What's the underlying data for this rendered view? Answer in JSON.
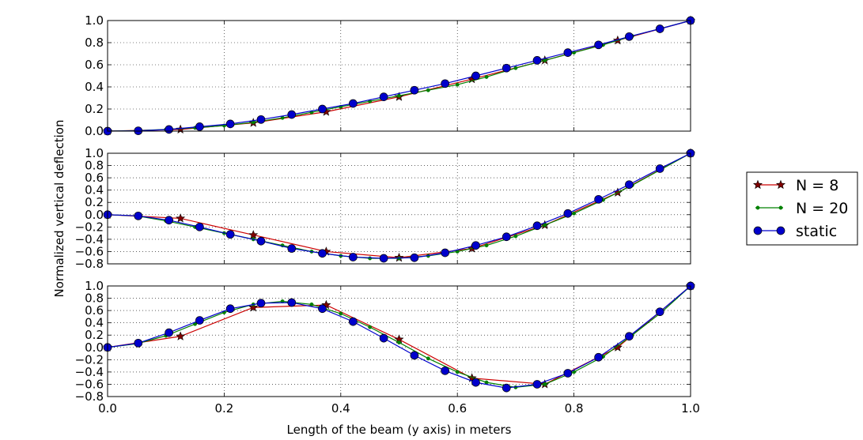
{
  "chart_data": {
    "type": "line",
    "xlabel": "Length of the beam (y axis) in meters",
    "ylabel": "Normalized vertical deflection",
    "xlim": [
      0.0,
      1.0
    ],
    "xticks": [
      "0.0",
      "0.2",
      "0.4",
      "0.6",
      "0.8",
      "1.0"
    ],
    "grid": true,
    "legend_position": "right",
    "colors": {
      "N = 8": "#cc0000",
      "N = 20": "#008000",
      "static": "#0000cc",
      "n8_marker": "#800000"
    },
    "subplots": [
      {
        "ylim": [
          0.0,
          1.0
        ],
        "yticks": [
          "0.0",
          "0.2",
          "0.4",
          "0.6",
          "0.8",
          "1.0"
        ],
        "series": [
          {
            "name": "N = 8",
            "marker": "star",
            "x": [
              0,
              0.125,
              0.25,
              0.375,
              0.5,
              0.625,
              0.75,
              0.875,
              1.0
            ],
            "y": [
              0,
              0.015,
              0.075,
              0.175,
              0.31,
              0.47,
              0.64,
              0.82,
              1.0
            ]
          },
          {
            "name": "N = 20",
            "marker": "dot",
            "x": [
              0,
              0.05,
              0.1,
              0.15,
              0.2,
              0.25,
              0.3,
              0.35,
              0.4,
              0.45,
              0.5,
              0.55,
              0.6,
              0.65,
              0.7,
              0.75,
              0.8,
              0.85,
              0.9,
              0.95,
              1.0
            ],
            "y": [
              0,
              0.005,
              0.015,
              0.03,
              0.05,
              0.08,
              0.12,
              0.17,
              0.22,
              0.27,
              0.32,
              0.37,
              0.42,
              0.49,
              0.57,
              0.64,
              0.71,
              0.78,
              0.86,
              0.93,
              1.0
            ]
          },
          {
            "name": "static",
            "marker": "circle",
            "x": [
              0,
              0.0526,
              0.1053,
              0.1579,
              0.2105,
              0.2632,
              0.3158,
              0.3684,
              0.4211,
              0.4737,
              0.5263,
              0.5789,
              0.6316,
              0.6842,
              0.7368,
              0.7895,
              0.8421,
              0.8947,
              0.9474,
              1.0
            ],
            "y": [
              0,
              0.003,
              0.015,
              0.04,
              0.065,
              0.105,
              0.15,
              0.2,
              0.25,
              0.31,
              0.37,
              0.43,
              0.5,
              0.57,
              0.64,
              0.71,
              0.78,
              0.855,
              0.925,
              1.0
            ]
          }
        ]
      },
      {
        "ylim": [
          -0.8,
          1.0
        ],
        "yticks": [
          "−0.8",
          "−0.6",
          "−0.4",
          "−0.2",
          "0.0",
          "0.2",
          "0.4",
          "0.6",
          "0.8",
          "1.0"
        ],
        "series": [
          {
            "name": "N = 8",
            "marker": "star",
            "x": [
              0,
              0.125,
              0.25,
              0.375,
              0.5,
              0.625,
              0.75,
              0.875,
              1.0
            ],
            "y": [
              0,
              -0.06,
              -0.33,
              -0.6,
              -0.7,
              -0.55,
              -0.17,
              0.36,
              1.0
            ]
          },
          {
            "name": "N = 20",
            "marker": "dot",
            "x": [
              0,
              0.05,
              0.1,
              0.15,
              0.2,
              0.25,
              0.3,
              0.35,
              0.4,
              0.45,
              0.5,
              0.55,
              0.6,
              0.65,
              0.7,
              0.75,
              0.8,
              0.85,
              0.9,
              0.95,
              1.0
            ],
            "y": [
              0,
              -0.02,
              -0.1,
              -0.2,
              -0.3,
              -0.4,
              -0.5,
              -0.6,
              -0.67,
              -0.71,
              -0.71,
              -0.67,
              -0.6,
              -0.5,
              -0.35,
              -0.17,
              0.02,
              0.24,
              0.48,
              0.74,
              1.0
            ]
          },
          {
            "name": "static",
            "marker": "circle",
            "x": [
              0,
              0.0526,
              0.1053,
              0.1579,
              0.2105,
              0.2632,
              0.3158,
              0.3684,
              0.4211,
              0.4737,
              0.5263,
              0.5789,
              0.6316,
              0.6842,
              0.7368,
              0.7895,
              0.8421,
              0.8947,
              0.9474,
              1.0
            ],
            "y": [
              0,
              -0.02,
              -0.09,
              -0.2,
              -0.32,
              -0.43,
              -0.55,
              -0.63,
              -0.69,
              -0.71,
              -0.7,
              -0.62,
              -0.5,
              -0.36,
              -0.18,
              0.02,
              0.25,
              0.49,
              0.75,
              1.0
            ]
          }
        ]
      },
      {
        "ylim": [
          -0.8,
          1.0
        ],
        "yticks": [
          "−0.8",
          "−0.6",
          "−0.4",
          "−0.2",
          "0.0",
          "0.2",
          "0.4",
          "0.6",
          "0.8",
          "1.0"
        ],
        "series": [
          {
            "name": "N = 8",
            "marker": "star",
            "x": [
              0,
              0.125,
              0.25,
              0.375,
              0.5,
              0.625,
              0.75,
              0.875,
              1.0
            ],
            "y": [
              0,
              0.18,
              0.65,
              0.69,
              0.13,
              -0.5,
              -0.6,
              0.0,
              1.0
            ]
          },
          {
            "name": "N = 20",
            "marker": "dot",
            "x": [
              0,
              0.05,
              0.1,
              0.15,
              0.2,
              0.25,
              0.3,
              0.35,
              0.4,
              0.45,
              0.5,
              0.55,
              0.6,
              0.65,
              0.7,
              0.75,
              0.8,
              0.85,
              0.9,
              0.95,
              1.0
            ],
            "y": [
              0,
              0.06,
              0.19,
              0.38,
              0.57,
              0.7,
              0.75,
              0.7,
              0.55,
              0.33,
              0.08,
              -0.18,
              -0.4,
              -0.57,
              -0.65,
              -0.6,
              -0.4,
              -0.15,
              0.2,
              0.57,
              1.0
            ]
          },
          {
            "name": "static",
            "marker": "circle",
            "x": [
              0,
              0.0526,
              0.1053,
              0.1579,
              0.2105,
              0.2632,
              0.3158,
              0.3684,
              0.4211,
              0.4737,
              0.5263,
              0.5789,
              0.6316,
              0.6842,
              0.7368,
              0.7895,
              0.8421,
              0.8947,
              0.9474,
              1.0
            ],
            "y": [
              0,
              0.07,
              0.24,
              0.44,
              0.63,
              0.72,
              0.73,
              0.63,
              0.42,
              0.15,
              -0.13,
              -0.38,
              -0.57,
              -0.66,
              -0.6,
              -0.42,
              -0.16,
              0.18,
              0.58,
              1.0
            ]
          }
        ]
      }
    ]
  }
}
